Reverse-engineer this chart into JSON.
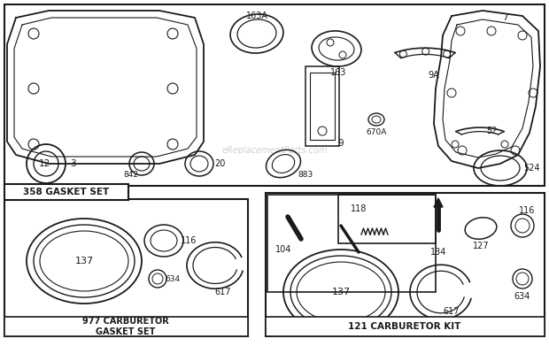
{
  "bg_color": "#ffffff",
  "line_color": "#1a1a1a",
  "watermark": "eReplacementParts.com",
  "box1_label": "358 GASKET SET",
  "box2_label": "977 CARBURETOR\nGASKET SET",
  "box3_label": "121 CARBURETOR KIT"
}
